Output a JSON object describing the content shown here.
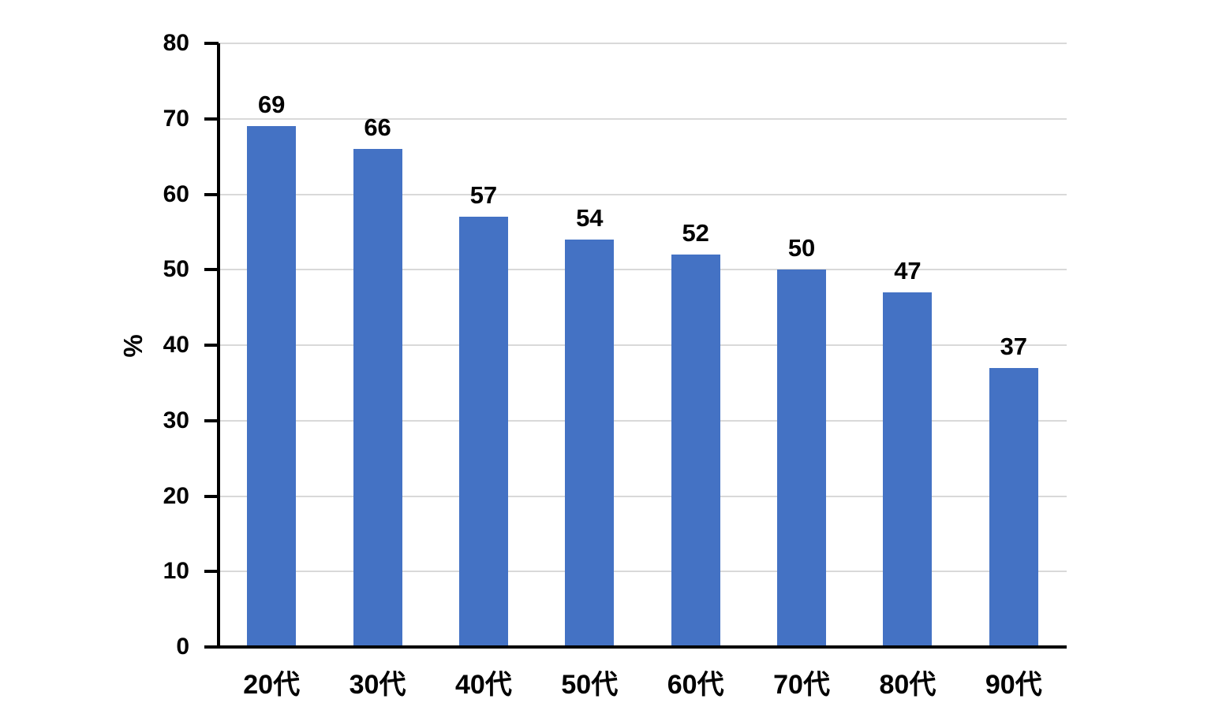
{
  "chart_data": {
    "type": "bar",
    "ylabel": "%",
    "categories": [
      "20代",
      "30代",
      "40代",
      "50代",
      "60代",
      "70代",
      "80代",
      "90代"
    ],
    "values": [
      69,
      66,
      57,
      54,
      52,
      50,
      47,
      37
    ],
    "yticks": [
      0,
      10,
      20,
      30,
      40,
      50,
      60,
      70,
      80
    ],
    "ylim": [
      0,
      80
    ],
    "grid": true,
    "legend": "none",
    "colors": {
      "bar": "#4472C4",
      "grid": "#D9D9D9",
      "axis": "#000000",
      "text": "#000000",
      "background": "#FFFFFF"
    }
  }
}
